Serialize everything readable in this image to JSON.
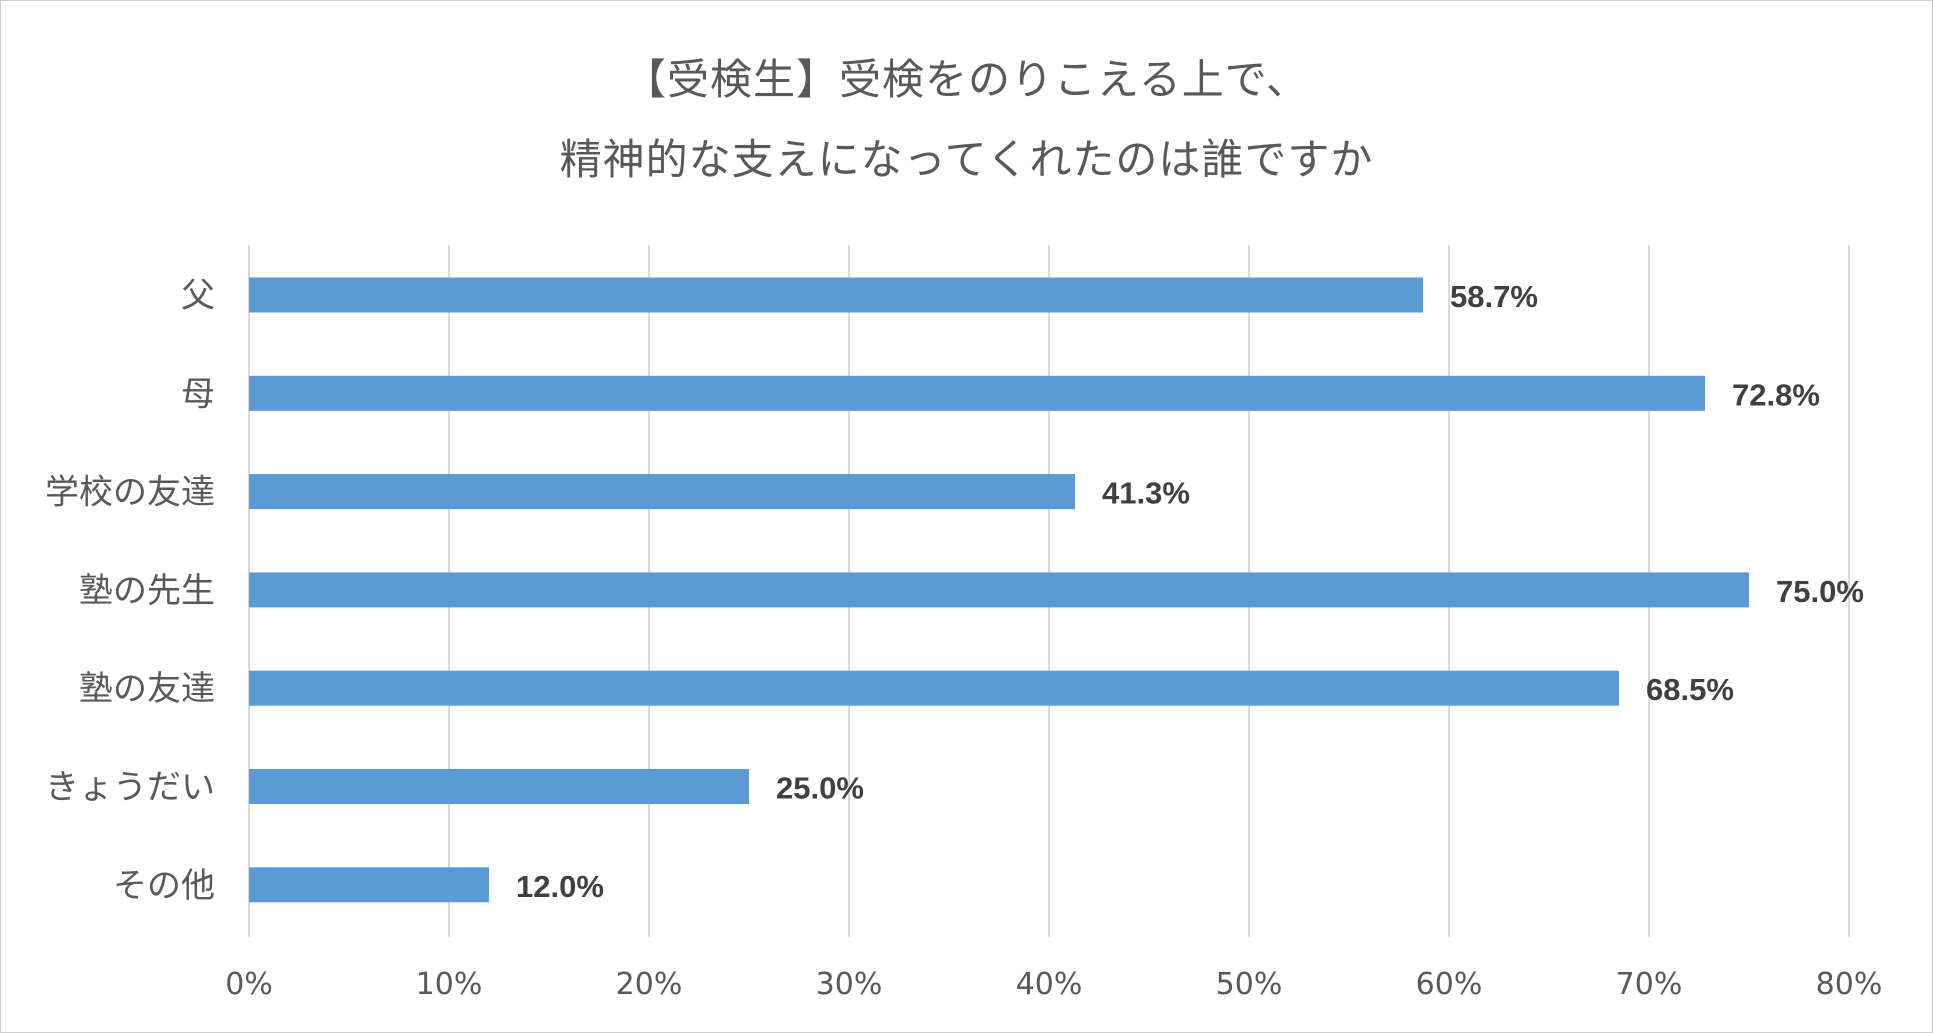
{
  "chart_data": {
    "type": "bar",
    "orientation": "horizontal",
    "title_lines": [
      "【受検生】受検をのりこえる上で、",
      "精神的な支えになってくれたのは誰ですか"
    ],
    "categories": [
      "父",
      "母",
      "学校の友達",
      "塾の先生",
      "塾の友達",
      "きょうだい",
      "その他"
    ],
    "values": [
      58.7,
      72.8,
      41.3,
      75.0,
      68.5,
      25.0,
      12.0
    ],
    "data_labels": [
      "58.7%",
      "72.8%",
      "41.3%",
      "75.0%",
      "68.5%",
      "25.0%",
      "12.0%"
    ],
    "xticks": [
      "0%",
      "10%",
      "20%",
      "30%",
      "40%",
      "50%",
      "60%",
      "70%",
      "80%"
    ],
    "xlim": [
      0,
      80
    ],
    "grid": true,
    "legend": "none",
    "colors": {
      "bar": "#5b9bd5",
      "grid": "#d9d9d9",
      "text": "#595959",
      "label": "#404040"
    }
  }
}
